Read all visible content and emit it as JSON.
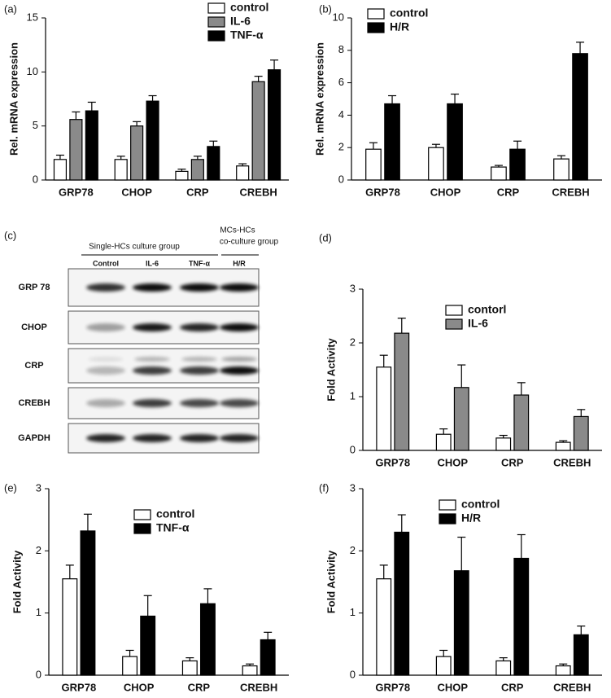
{
  "chart_data": [
    {
      "type": "bar",
      "label": "(a)",
      "y_label": "Rel. mRNA expression",
      "categories": [
        "GRP78",
        "CHOP",
        "CRP",
        "CREBH"
      ],
      "series": [
        {
          "name": "control",
          "color": "#ffffff",
          "values": [
            1.9,
            1.9,
            0.8,
            1.3
          ],
          "errors": [
            0.4,
            0.3,
            0.2,
            0.2
          ]
        },
        {
          "name": "IL-6",
          "color": "#8a8a8a",
          "values": [
            5.6,
            5.0,
            1.9,
            9.1
          ],
          "errors": [
            0.7,
            0.4,
            0.3,
            0.5
          ]
        },
        {
          "name": "TNF-α",
          "color": "#000000",
          "values": [
            6.4,
            7.3,
            3.1,
            10.2
          ],
          "errors": [
            0.8,
            0.5,
            0.5,
            0.9
          ]
        }
      ],
      "ylim": [
        0,
        15
      ],
      "yticks": [
        0,
        5,
        10,
        15
      ],
      "legend": "upper right"
    },
    {
      "type": "bar",
      "label": "(b)",
      "y_label": "Rel. mRNA expression",
      "categories": [
        "GRP78",
        "CHOP",
        "CRP",
        "CREBH"
      ],
      "series": [
        {
          "name": "control",
          "color": "#ffffff",
          "values": [
            1.9,
            2.0,
            0.8,
            1.3
          ],
          "errors": [
            0.4,
            0.2,
            0.1,
            0.2
          ]
        },
        {
          "name": "H/R",
          "color": "#000000",
          "values": [
            4.7,
            4.7,
            1.9,
            7.8
          ],
          "errors": [
            0.5,
            0.6,
            0.5,
            0.7
          ]
        }
      ],
      "ylim": [
        0,
        10
      ],
      "yticks": [
        0,
        2,
        4,
        6,
        8,
        10
      ],
      "legend": "upper left"
    },
    {
      "type": "bar",
      "label": "(d)",
      "y_label": "Fold Activity",
      "categories": [
        "GRP78",
        "CHOP",
        "CRP",
        "CREBH"
      ],
      "series": [
        {
          "name": "contorl",
          "color": "#ffffff",
          "values": [
            1.55,
            0.3,
            0.23,
            0.15
          ],
          "errors": [
            0.22,
            0.1,
            0.05,
            0.03
          ]
        },
        {
          "name": "IL-6",
          "color": "#8a8a8a",
          "values": [
            2.18,
            1.17,
            1.03,
            0.63
          ],
          "errors": [
            0.28,
            0.42,
            0.23,
            0.13
          ]
        }
      ],
      "ylim": [
        0,
        3
      ],
      "yticks": [
        0,
        1,
        2,
        3
      ],
      "legend": "upper right"
    },
    {
      "type": "bar",
      "label": "(e)",
      "y_label": "Fold Activity",
      "categories": [
        "GRP78",
        "CHOP",
        "CRP",
        "CREBH"
      ],
      "series": [
        {
          "name": "control",
          "color": "#ffffff",
          "values": [
            1.55,
            0.3,
            0.23,
            0.15
          ],
          "errors": [
            0.22,
            0.1,
            0.05,
            0.03
          ]
        },
        {
          "name": "TNF-α",
          "color": "#000000",
          "values": [
            2.32,
            0.95,
            1.15,
            0.57
          ],
          "errors": [
            0.27,
            0.33,
            0.24,
            0.12
          ]
        }
      ],
      "ylim": [
        0,
        3
      ],
      "yticks": [
        0,
        1,
        2,
        3
      ],
      "legend": "upper right"
    },
    {
      "type": "bar",
      "label": "(f)",
      "y_label": "Fold Activity",
      "categories": [
        "GRP78",
        "CHOP",
        "CRP",
        "CREBH"
      ],
      "series": [
        {
          "name": "control",
          "color": "#ffffff",
          "values": [
            1.55,
            0.3,
            0.23,
            0.15
          ],
          "errors": [
            0.22,
            0.1,
            0.05,
            0.03
          ]
        },
        {
          "name": "H/R",
          "color": "#000000",
          "values": [
            2.3,
            1.68,
            1.88,
            0.65
          ],
          "errors": [
            0.28,
            0.54,
            0.38,
            0.14
          ]
        }
      ],
      "ylim": [
        0,
        3
      ],
      "yticks": [
        0,
        1,
        2,
        3
      ],
      "legend": "upper right"
    }
  ],
  "blot": {
    "label": "(c)",
    "group1": "Single-HCs culture group",
    "group2_line1": "MCs-HCs",
    "group2_line2": "co-culture group",
    "lanes": [
      "Control",
      "IL-6",
      "TNF-α",
      "H/R"
    ],
    "rows": [
      "GRP 78",
      "CHOP",
      "CRP",
      "CREBH",
      "GAPDH"
    ]
  }
}
